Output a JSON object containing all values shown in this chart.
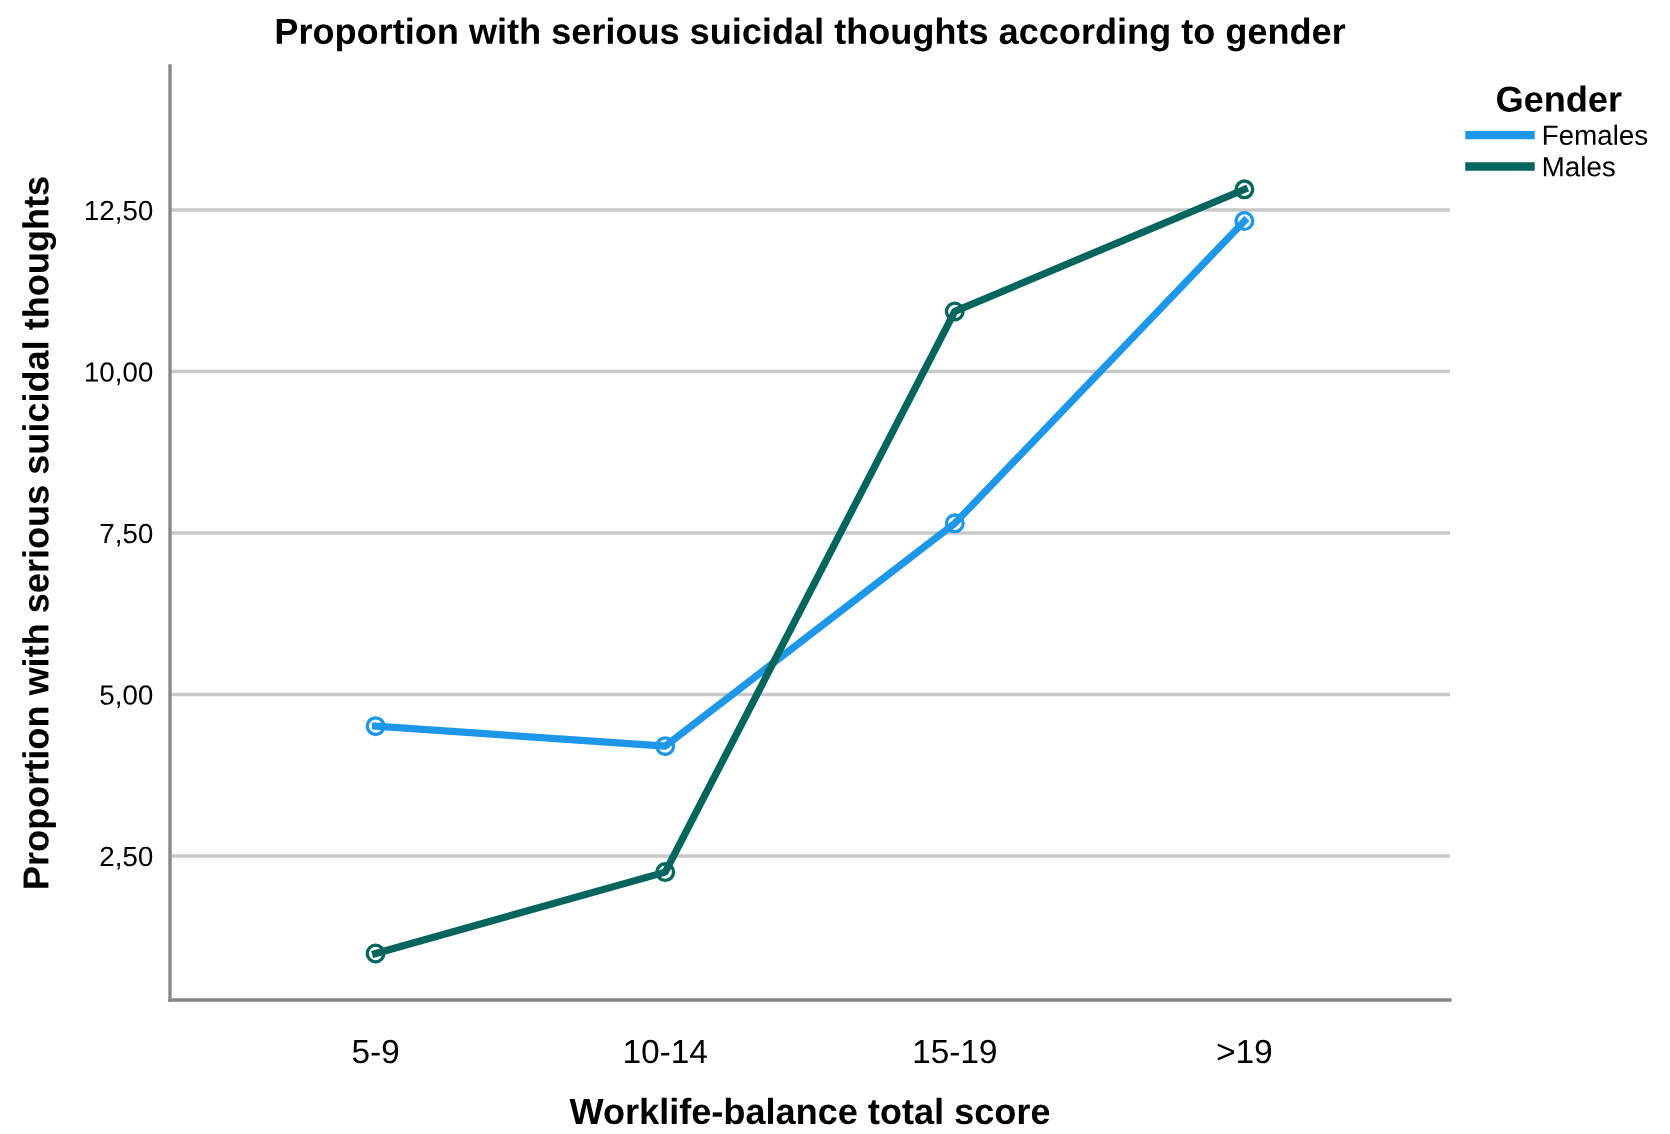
{
  "chart_data": {
    "type": "line",
    "title": "Proportion with serious suicidal thoughts according to gender",
    "xlabel": "Worklife-balance total score",
    "ylabel": "Proportion with serious suicidal thoughts",
    "legend_title": "Gender",
    "categories": [
      "5-9",
      "10-14",
      "15-19",
      ">19"
    ],
    "series": [
      {
        "name": "Females",
        "color": "#1f97e8",
        "values": [
          4.51,
          4.2,
          7.65,
          12.33
        ]
      },
      {
        "name": "Males",
        "color": "#04655c",
        "values": [
          0.99,
          2.25,
          10.93,
          12.82
        ]
      }
    ],
    "ylim": [
      0.27,
      14.73
    ],
    "yticks": [
      {
        "value": 2.5,
        "label": "2,50"
      },
      {
        "value": 5,
        "label": "5,00"
      },
      {
        "value": 7.5,
        "label": "7,50"
      },
      {
        "value": 10,
        "label": "10,00"
      },
      {
        "value": 12.5,
        "label": "12,50"
      }
    ],
    "grid": "y",
    "legend": "top right",
    "marker": "circle",
    "line_style": "solid"
  }
}
